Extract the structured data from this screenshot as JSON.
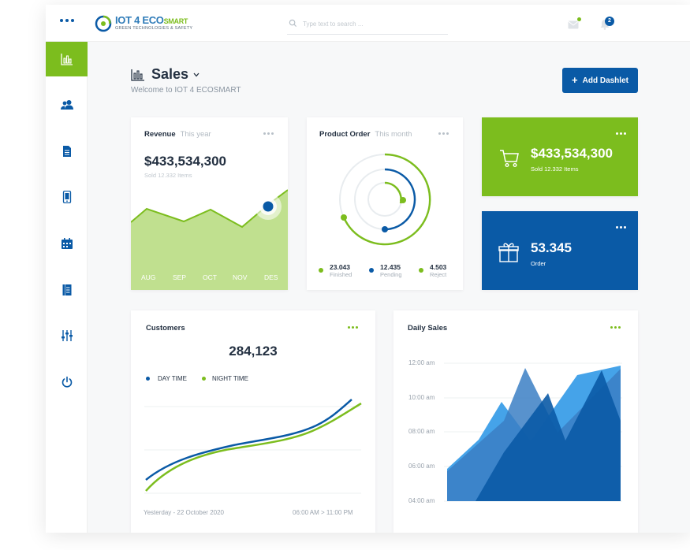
{
  "app": {
    "logo_main": "IOT 4 ECO",
    "logo_suffix": "SMART",
    "logo_tagline": "GREEN TECHNOLOGIES & SAFETY"
  },
  "search": {
    "placeholder": "Type text to search ..."
  },
  "notifications": {
    "bell_count": "2"
  },
  "sidebar": {
    "items": [
      {
        "name": "dashboard",
        "icon": "bar-chart-icon",
        "active": true
      },
      {
        "name": "users",
        "icon": "users-icon",
        "active": false
      },
      {
        "name": "documents",
        "icon": "document-icon",
        "active": false
      },
      {
        "name": "device",
        "icon": "mobile-icon",
        "active": false
      },
      {
        "name": "calendar",
        "icon": "calendar-icon",
        "active": false
      },
      {
        "name": "reports",
        "icon": "report-icon",
        "active": false
      },
      {
        "name": "settings",
        "icon": "sliders-icon",
        "active": false
      },
      {
        "name": "logout",
        "icon": "power-icon",
        "active": false
      }
    ]
  },
  "header": {
    "title": "Sales",
    "welcome": "Welcome to IOT 4 ECOSMART",
    "add_button": "Add Dashlet"
  },
  "revenue": {
    "title": "Revenue",
    "period": "This year",
    "value": "$433,534,300",
    "sub": "Sold 12.332 Items",
    "months": [
      "AUG",
      "SEP",
      "OCT",
      "NOV",
      "DES"
    ]
  },
  "product_order": {
    "title": "Product Order",
    "period": "This month",
    "finished_value": "23.043",
    "finished_label": "Finished",
    "pending_value": "12.435",
    "pending_label": "Pending",
    "reject_value": "4.503",
    "reject_label": "Reject"
  },
  "sold_tile": {
    "value": "$433,534,300",
    "sub": "Sold 12.332 Items",
    "icon": "cart-icon",
    "color": "#7cbd1e"
  },
  "order_tile": {
    "value": "53.345",
    "sub": "Order",
    "icon": "gift-box-icon",
    "color": "#0a5aa6"
  },
  "customers": {
    "title": "Customers",
    "value": "284,123",
    "legend_day": "DAY TIME",
    "legend_night": "NIGHT TIME",
    "footer_date": "Yesterday - 22 October 2020",
    "footer_time": "06:00 AM > 11:00 PM"
  },
  "daily_sales": {
    "title": "Daily Sales",
    "y_labels": [
      "12:00 am",
      "10:00 am",
      "08:00 am",
      "06:00 am",
      "04:00 am"
    ]
  },
  "colors": {
    "brand_blue": "#0a5aa6",
    "brand_green": "#7cbd1e",
    "light_blue": "#3b9ee8"
  }
}
